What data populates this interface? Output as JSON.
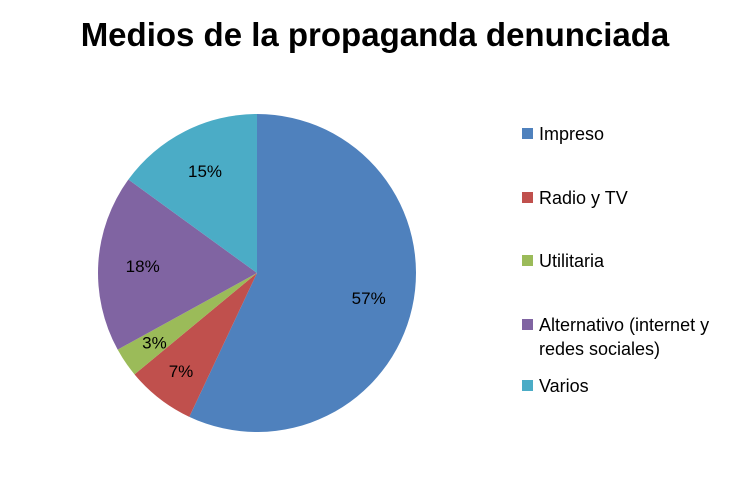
{
  "chart_data": {
    "type": "pie",
    "title": "Medios de la propaganda denunciada",
    "categories": [
      "Impreso",
      "Radio y TV",
      "Utilitaria",
      "Alternativo (internet y redes sociales)",
      "Varios"
    ],
    "values": [
      57,
      7,
      3,
      18,
      15
    ],
    "data_labels": [
      "57%",
      "7%",
      "3%",
      "18%",
      "15%"
    ],
    "colors": [
      "#4F81BD",
      "#C0504D",
      "#9BBB59",
      "#8064A2",
      "#4BACC6"
    ],
    "legend": "right",
    "start": "top, clockwise"
  }
}
